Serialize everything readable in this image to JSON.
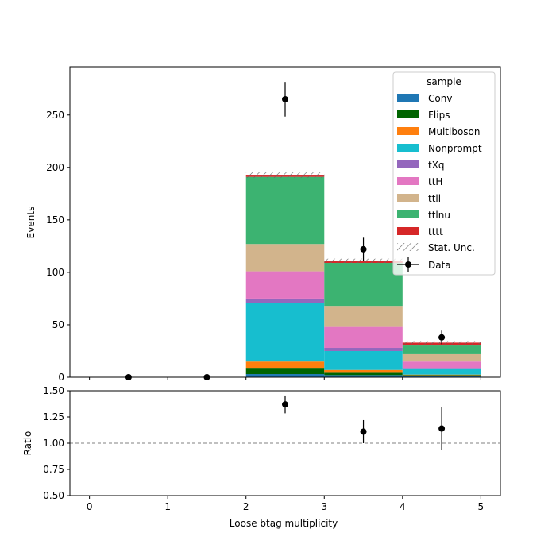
{
  "chart_data": {
    "type": "bar",
    "stacked": true,
    "xlabel": "Loose btag multiplicity",
    "ylabel": "Events",
    "ratio_ylabel": "Ratio",
    "xlim": [
      -0.25,
      5.25
    ],
    "ylim": [
      0,
      296
    ],
    "ratio_ylim": [
      0.5,
      1.5
    ],
    "x_ticks": [
      "0",
      "1",
      "2",
      "3",
      "4",
      "5"
    ],
    "y_ticks": [
      "0",
      "50",
      "100",
      "150",
      "200",
      "250"
    ],
    "ratio_y_ticks": [
      "0.50",
      "0.75",
      "1.00",
      "1.25",
      "1.50"
    ],
    "bin_edges": [
      0,
      1,
      2,
      3,
      4,
      5
    ],
    "legend": {
      "title": "sample",
      "placement": "top-right",
      "stat_label": "Stat. Unc.",
      "data_label": "Data"
    },
    "series": [
      {
        "name": "Conv",
        "color": "#1f77b4",
        "values": [
          0,
          0,
          3,
          2,
          1
        ]
      },
      {
        "name": "Flips",
        "color": "#006400",
        "values": [
          0,
          0,
          6,
          3,
          1
        ]
      },
      {
        "name": "Multiboson",
        "color": "#ff7f0e",
        "values": [
          0,
          0,
          6,
          2,
          0.5
        ]
      },
      {
        "name": "Nonprompt",
        "color": "#17becf",
        "values": [
          0,
          0,
          56,
          18,
          6
        ]
      },
      {
        "name": "tXq",
        "color": "#9467bd",
        "values": [
          0,
          0,
          4,
          3,
          0.5
        ]
      },
      {
        "name": "ttH",
        "color": "#e377c2",
        "values": [
          0,
          0,
          26,
          20,
          6
        ]
      },
      {
        "name": "ttll",
        "color": "#d2b48c",
        "values": [
          0,
          0,
          26,
          20,
          7
        ]
      },
      {
        "name": "ttlnu",
        "color": "#3cb371",
        "values": [
          0,
          0,
          64,
          41,
          9
        ]
      },
      {
        "name": "tttt",
        "color": "#d62728",
        "values": [
          0,
          0,
          2,
          2,
          2
        ]
      }
    ],
    "stat_unc": [
      0,
      0,
      3,
      2,
      1.5
    ],
    "data": {
      "x": [
        0.5,
        1.5,
        2.5,
        3.5,
        4.5
      ],
      "y": [
        0,
        0,
        265,
        122,
        38
      ],
      "yerr": [
        0,
        0,
        16.5,
        11,
        6.5
      ]
    },
    "ratio": {
      "x": [
        2.5,
        3.5,
        4.5
      ],
      "y": [
        1.37,
        1.11,
        1.14
      ],
      "yerr": [
        0.085,
        0.11,
        0.205
      ],
      "reference": 1.0
    }
  }
}
